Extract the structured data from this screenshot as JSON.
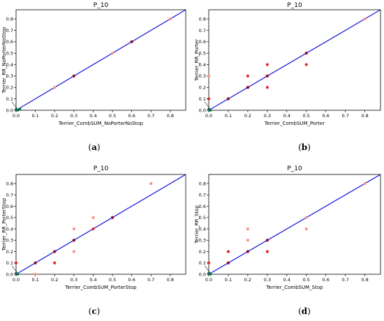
{
  "chart_data": [
    {
      "type": "scatter",
      "panel": "a",
      "caption": "(a)",
      "title": "P_10",
      "xlabel": "Terrier_CombSUM_NoPorterNoStop",
      "ylabel": "Terrier_RR_NoPorterNoStop",
      "xlim": [
        0,
        0.88
      ],
      "ylim": [
        0,
        0.88
      ],
      "xticks": [
        "0.0",
        "0.1",
        "0.2",
        "0.3",
        "0.4",
        "0.5",
        "0.6",
        "0.7",
        "0.8"
      ],
      "yticks": [
        "0.0",
        "0.1",
        "0.2",
        "0.3",
        "0.4",
        "0.5",
        "0.6",
        "0.7",
        "0.8"
      ],
      "diagonal": true,
      "points": [
        {
          "x": 0.2,
          "y": 0.2,
          "c": "light"
        },
        {
          "x": 0.3,
          "y": 0.3,
          "c": "dark"
        },
        {
          "x": 0.5,
          "y": 0.5,
          "c": "light"
        },
        {
          "x": 0.6,
          "y": 0.6,
          "c": "dark"
        },
        {
          "x": 0.8,
          "y": 0.8,
          "c": "light"
        },
        {
          "x": 0.0,
          "y": 0.0,
          "c": "green"
        },
        {
          "x": 0.01,
          "y": 0.0,
          "c": "green"
        },
        {
          "x": 0.0,
          "y": 0.01,
          "c": "green"
        },
        {
          "x": 0.02,
          "y": 0.01,
          "c": "green"
        }
      ]
    },
    {
      "type": "scatter",
      "panel": "b",
      "caption": "(b)",
      "title": "P_10",
      "xlabel": "Terrier_CombSUM_Porter",
      "ylabel": "Terrier_RR_Porter",
      "xlim": [
        0,
        0.88
      ],
      "ylim": [
        0,
        0.88
      ],
      "xticks": [
        "0.0",
        "0.1",
        "0.2",
        "0.3",
        "0.4",
        "0.5",
        "0.6",
        "0.7",
        "0.8"
      ],
      "yticks": [
        "0.0",
        "0.1",
        "0.2",
        "0.3",
        "0.4",
        "0.5",
        "0.6",
        "0.7",
        "0.8"
      ],
      "diagonal": true,
      "points": [
        {
          "x": 0.0,
          "y": 0.1,
          "c": "red"
        },
        {
          "x": 0.0,
          "y": 0.3,
          "c": "light"
        },
        {
          "x": 0.1,
          "y": 0.1,
          "c": "dark"
        },
        {
          "x": 0.2,
          "y": 0.2,
          "c": "dark"
        },
        {
          "x": 0.2,
          "y": 0.3,
          "c": "red"
        },
        {
          "x": 0.3,
          "y": 0.2,
          "c": "red"
        },
        {
          "x": 0.3,
          "y": 0.3,
          "c": "dark"
        },
        {
          "x": 0.3,
          "y": 0.4,
          "c": "red"
        },
        {
          "x": 0.5,
          "y": 0.4,
          "c": "red"
        },
        {
          "x": 0.5,
          "y": 0.5,
          "c": "dark"
        },
        {
          "x": 0.8,
          "y": 0.8,
          "c": "light"
        },
        {
          "x": 0.0,
          "y": 0.0,
          "c": "green"
        },
        {
          "x": 0.01,
          "y": 0.0,
          "c": "green"
        },
        {
          "x": 0.0,
          "y": 0.01,
          "c": "green"
        }
      ]
    },
    {
      "type": "scatter",
      "panel": "c",
      "caption": "(c)",
      "title": "P_10",
      "xlabel": "Terrier_CombSUM_PorterStop",
      "ylabel": "Terrier_RR_PorterStop",
      "xlim": [
        0,
        0.88
      ],
      "ylim": [
        0,
        0.88
      ],
      "xticks": [
        "0.0",
        "0.1",
        "0.2",
        "0.3",
        "0.4",
        "0.5",
        "0.6",
        "0.7",
        "0.8"
      ],
      "yticks": [
        "0.0",
        "0.1",
        "0.2",
        "0.3",
        "0.4",
        "0.5",
        "0.6",
        "0.7",
        "0.8"
      ],
      "diagonal": true,
      "points": [
        {
          "x": 0.0,
          "y": 0.1,
          "c": "red"
        },
        {
          "x": 0.1,
          "y": 0.0,
          "c": "light"
        },
        {
          "x": 0.1,
          "y": 0.1,
          "c": "dark"
        },
        {
          "x": 0.2,
          "y": 0.1,
          "c": "red"
        },
        {
          "x": 0.2,
          "y": 0.2,
          "c": "dark"
        },
        {
          "x": 0.3,
          "y": 0.2,
          "c": "light"
        },
        {
          "x": 0.3,
          "y": 0.3,
          "c": "dark"
        },
        {
          "x": 0.3,
          "y": 0.4,
          "c": "light"
        },
        {
          "x": 0.4,
          "y": 0.4,
          "c": "red"
        },
        {
          "x": 0.4,
          "y": 0.5,
          "c": "light"
        },
        {
          "x": 0.5,
          "y": 0.5,
          "c": "dark"
        },
        {
          "x": 0.7,
          "y": 0.8,
          "c": "light"
        },
        {
          "x": 0.0,
          "y": 0.0,
          "c": "green"
        },
        {
          "x": 0.01,
          "y": 0.0,
          "c": "green"
        },
        {
          "x": 0.0,
          "y": 0.01,
          "c": "green"
        }
      ]
    },
    {
      "type": "scatter",
      "panel": "d",
      "caption": "(d)",
      "title": "P_10",
      "xlabel": "Terrier_CombSUM_Stop",
      "ylabel": "Terrier_RR_Stop",
      "xlim": [
        0,
        0.88
      ],
      "ylim": [
        0,
        0.88
      ],
      "xticks": [
        "0.0",
        "0.1",
        "0.2",
        "0.3",
        "0.4",
        "0.5",
        "0.6",
        "0.7",
        "0.8"
      ],
      "yticks": [
        "0.0",
        "0.1",
        "0.2",
        "0.3",
        "0.4",
        "0.5",
        "0.6",
        "0.7",
        "0.8"
      ],
      "diagonal": true,
      "points": [
        {
          "x": 0.0,
          "y": 0.1,
          "c": "red"
        },
        {
          "x": 0.1,
          "y": 0.1,
          "c": "dark"
        },
        {
          "x": 0.1,
          "y": 0.2,
          "c": "red"
        },
        {
          "x": 0.2,
          "y": 0.2,
          "c": "dark"
        },
        {
          "x": 0.2,
          "y": 0.3,
          "c": "light"
        },
        {
          "x": 0.2,
          "y": 0.4,
          "c": "light"
        },
        {
          "x": 0.3,
          "y": 0.2,
          "c": "red"
        },
        {
          "x": 0.3,
          "y": 0.3,
          "c": "dark"
        },
        {
          "x": 0.5,
          "y": 0.4,
          "c": "light"
        },
        {
          "x": 0.5,
          "y": 0.5,
          "c": "light"
        },
        {
          "x": 0.8,
          "y": 0.8,
          "c": "light"
        },
        {
          "x": 0.0,
          "y": 0.0,
          "c": "green"
        },
        {
          "x": 0.01,
          "y": 0.0,
          "c": "green"
        },
        {
          "x": 0.0,
          "y": 0.01,
          "c": "green"
        }
      ]
    }
  ],
  "colors": {
    "diagonal": "#1f1fdc",
    "axes": "#000000",
    "light": "#f4948a",
    "red": "#e2262d",
    "dark": "#8a0a2a",
    "green": "#0e6b45"
  }
}
